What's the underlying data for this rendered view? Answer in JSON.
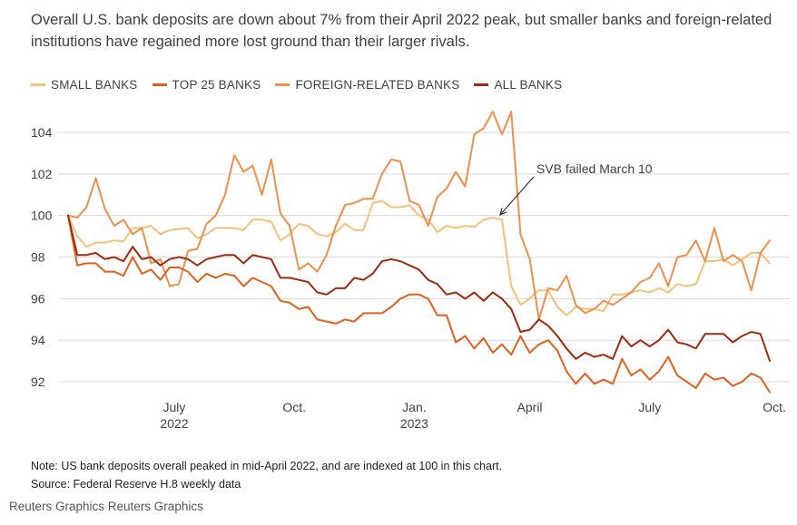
{
  "headline": "Overall U.S. bank deposits are down about 7% from their April 2022 peak, but smaller banks and foreign-related institutions have regained more lost ground than their larger rivals.",
  "note": "Note: US bank deposits overall peaked in mid-April 2022, and are indexed at 100 in this chart.",
  "source": "Source: Federal Reserve H.8 weekly data",
  "credit": "Reuters Graphics Reuters Graphics",
  "colors": {
    "small_banks": "#f5c07a",
    "top25_banks": "#e0601e",
    "foreign_related": "#ef8f4c",
    "all_banks": "#9e2a10",
    "grid": "#d9d9d9",
    "axis_text": "#404040"
  },
  "chart_data": {
    "type": "line",
    "title": "",
    "xlabel": "",
    "ylabel": "",
    "ylim": [
      91.5,
      105.2
    ],
    "yticks": [
      92,
      94,
      96,
      98,
      100,
      102,
      104
    ],
    "grid": "horizontal",
    "legend_position": "top-left",
    "x_start": "2022-04-13",
    "x_step_weeks": 1,
    "x_ticks": [
      {
        "label": "July",
        "sublabel": "2022",
        "week": 11.5
      },
      {
        "label": "Oct.",
        "sublabel": "",
        "week": 24.5
      },
      {
        "label": "Jan.",
        "sublabel": "2023",
        "week": 37.5
      },
      {
        "label": "April",
        "sublabel": "",
        "week": 50
      },
      {
        "label": "July",
        "sublabel": "",
        "week": 63
      },
      {
        "label": "Oct.",
        "sublabel": "",
        "week": 76.5
      }
    ],
    "annotation": {
      "text": "SVB failed March 10",
      "week": 46.5,
      "value": 99.9
    },
    "series": [
      {
        "name": "SMALL BANKS",
        "color_key": "small_banks",
        "values": [
          100,
          99.0,
          98.5,
          98.7,
          98.7,
          98.8,
          98.75,
          99.4,
          99.4,
          99.5,
          99.1,
          99.3,
          99.35,
          99.4,
          98.9,
          99.1,
          99.4,
          99.4,
          99.4,
          99.3,
          99.8,
          99.8,
          99.7,
          98.8,
          99.1,
          99.6,
          99.5,
          99.1,
          99.0,
          99.2,
          99.6,
          99.3,
          99.3,
          100.6,
          100.7,
          100.4,
          100.4,
          100.5,
          100.0,
          99.8,
          99.2,
          99.5,
          99.4,
          99.5,
          99.45,
          99.8,
          99.9,
          99.8,
          96.6,
          95.7,
          96.0,
          96.4,
          96.4,
          95.6,
          95.2,
          95.6,
          95.5,
          95.5,
          95.4,
          96.2,
          96.2,
          96.3,
          96.4,
          96.3,
          96.5,
          96.3,
          96.7,
          96.6,
          96.7,
          97.8,
          97.8,
          97.9,
          97.6,
          97.9,
          98.2,
          98.2,
          97.7
        ]
      },
      {
        "name": "TOP 25 BANKS",
        "color_key": "top25_banks",
        "values": [
          100,
          97.6,
          97.7,
          97.7,
          97.3,
          97.3,
          97.1,
          98.0,
          97.2,
          97.4,
          96.9,
          97.5,
          97.5,
          97.3,
          96.8,
          97.2,
          97.0,
          97.2,
          97.1,
          96.6,
          97.0,
          96.8,
          96.6,
          95.9,
          95.8,
          95.5,
          95.6,
          95.0,
          94.9,
          94.8,
          95.0,
          94.9,
          95.3,
          95.3,
          95.3,
          95.6,
          96.0,
          96.2,
          96.2,
          96.0,
          95.2,
          95.2,
          93.9,
          94.2,
          93.6,
          94.1,
          93.4,
          93.8,
          93.3,
          94.2,
          93.4,
          93.8,
          94.0,
          93.5,
          92.5,
          91.9,
          92.4,
          91.9,
          92.1,
          91.9,
          93.1,
          92.3,
          92.6,
          92.1,
          92.5,
          93.2,
          92.3,
          92.0,
          91.7,
          92.4,
          92.1,
          92.2,
          91.8,
          92.0,
          92.4,
          92.2,
          91.5
        ]
      },
      {
        "name": "FOREIGN-RELATED BANKS",
        "color_key": "foreign_related",
        "values": [
          100,
          99.9,
          100.4,
          101.8,
          100.3,
          99.5,
          99.8,
          99.1,
          99.4,
          97.7,
          97.9,
          96.6,
          96.7,
          98.3,
          98.4,
          99.6,
          100.0,
          101.0,
          102.9,
          102.1,
          102.4,
          101.0,
          102.7,
          100.1,
          99.5,
          97.4,
          97.7,
          97.3,
          98.1,
          99.5,
          100.5,
          100.6,
          100.8,
          100.8,
          102.0,
          102.7,
          102.6,
          100.7,
          100.5,
          99.5,
          100.9,
          101.3,
          102.1,
          101.4,
          103.9,
          104.2,
          105.0,
          103.9,
          105.0,
          99.1,
          97.9,
          95.0,
          96.5,
          96.4,
          97.1,
          95.7,
          95.3,
          95.5,
          95.9,
          95.7,
          96.0,
          96.3,
          96.8,
          97.0,
          97.7,
          96.6,
          98.0,
          98.1,
          98.8,
          97.8,
          99.4,
          97.8,
          98.1,
          97.8,
          96.4,
          98.2,
          98.8
        ]
      },
      {
        "name": "ALL BANKS",
        "color_key": "all_banks",
        "values": [
          100,
          98.1,
          98.1,
          98.2,
          97.9,
          98.0,
          97.8,
          98.5,
          97.9,
          98.0,
          97.6,
          97.9,
          98.0,
          97.9,
          97.6,
          97.9,
          98.0,
          98.1,
          98.1,
          97.7,
          98.1,
          98.0,
          97.9,
          97.0,
          97.0,
          96.9,
          96.8,
          96.3,
          96.2,
          96.5,
          96.5,
          97.0,
          96.9,
          97.2,
          97.8,
          97.9,
          97.8,
          97.6,
          97.4,
          96.9,
          96.7,
          96.2,
          96.3,
          96.0,
          96.3,
          95.9,
          96.3,
          96.0,
          95.5,
          94.4,
          94.5,
          95.0,
          94.7,
          94.2,
          93.6,
          93.1,
          93.4,
          93.2,
          93.3,
          93.1,
          94.2,
          93.7,
          94.0,
          93.7,
          94.0,
          94.5,
          93.9,
          93.8,
          93.6,
          94.3,
          94.3,
          94.3,
          93.9,
          94.2,
          94.4,
          94.3,
          93.0
        ]
      }
    ]
  }
}
